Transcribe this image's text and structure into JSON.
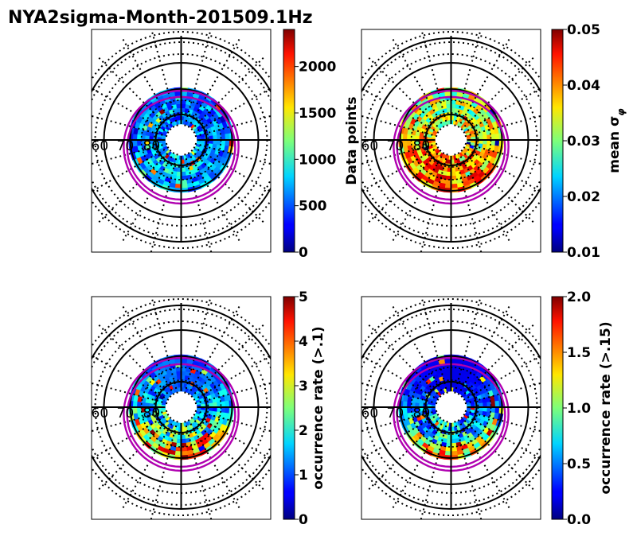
{
  "figure": {
    "title": "NYA2sigma-Month-201509.1Hz"
  },
  "chart_data": [
    {
      "type": "heatmap",
      "projection": "polar",
      "panel": "top-left",
      "latitude_labels": [
        "60",
        "70",
        "80"
      ],
      "colormap": "jet",
      "colorbar": {
        "label": "Data points",
        "range": [
          0,
          2400
        ],
        "ticks": [
          "0",
          "500",
          "1000",
          "1500",
          "2000"
        ]
      },
      "overlay_color": "#b000b0"
    },
    {
      "type": "heatmap",
      "projection": "polar",
      "panel": "top-right",
      "latitude_labels": [
        "60",
        "70",
        "80"
      ],
      "colormap": "jet",
      "colorbar": {
        "label": "mean σ",
        "label_subscript": "φ",
        "range": [
          0.01,
          0.05
        ],
        "ticks": [
          "0.01",
          "0.02",
          "0.03",
          "0.04",
          "0.05"
        ]
      },
      "overlay_color": "#b000b0"
    },
    {
      "type": "heatmap",
      "projection": "polar",
      "panel": "bottom-left",
      "latitude_labels": [
        "60",
        "70",
        "80"
      ],
      "colormap": "jet",
      "colorbar": {
        "label": "occurrence rate (>.1)",
        "range": [
          0,
          5
        ],
        "ticks": [
          "0",
          "1",
          "2",
          "3",
          "4",
          "5"
        ]
      },
      "overlay_color": "#b000b0"
    },
    {
      "type": "heatmap",
      "projection": "polar",
      "panel": "bottom-right",
      "latitude_labels": [
        "60",
        "70",
        "80"
      ],
      "colormap": "jet",
      "colorbar": {
        "label": "occurrence rate (>.15)",
        "range": [
          0,
          2
        ],
        "ticks": [
          "0.0",
          "0.5",
          "1.0",
          "1.5",
          "2.0"
        ]
      },
      "overlay_color": "#b000b0"
    }
  ]
}
